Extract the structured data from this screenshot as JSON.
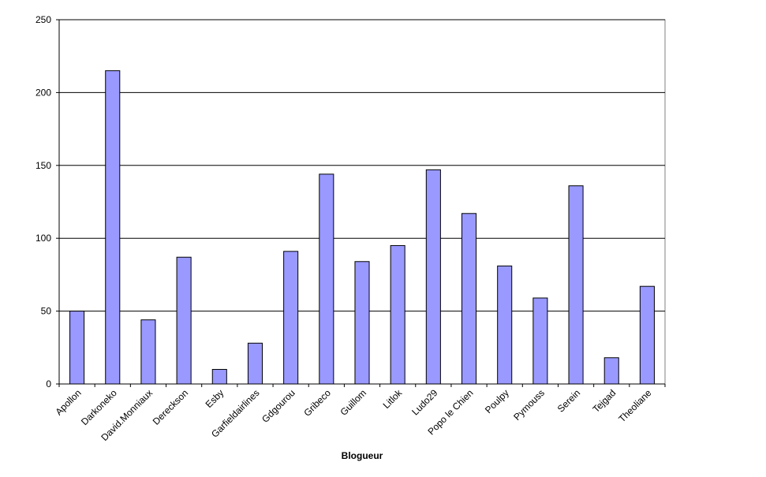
{
  "chart_data": {
    "type": "bar",
    "x_label": "Blogueur",
    "categories": [
      "Apollon",
      "Darkoneko",
      "David.Monniaux",
      "Dereckson",
      "Esby",
      "Garfieldairlines",
      "Gdgourou",
      "Gribeco",
      "Guillom",
      "Litlok",
      "Ludo29",
      "Popo le Chien",
      "Poulpy",
      "Pymouss",
      "Serein",
      "Tejgad",
      "Theoliane"
    ],
    "values": [
      50,
      215,
      44,
      87,
      10,
      28,
      91,
      144,
      84,
      95,
      147,
      117,
      81,
      59,
      136,
      18,
      67
    ],
    "color": "#9999ff",
    "ylim": [
      0,
      250
    ],
    "yticks": [
      0,
      50,
      100,
      150,
      200,
      250
    ],
    "grid": true
  }
}
